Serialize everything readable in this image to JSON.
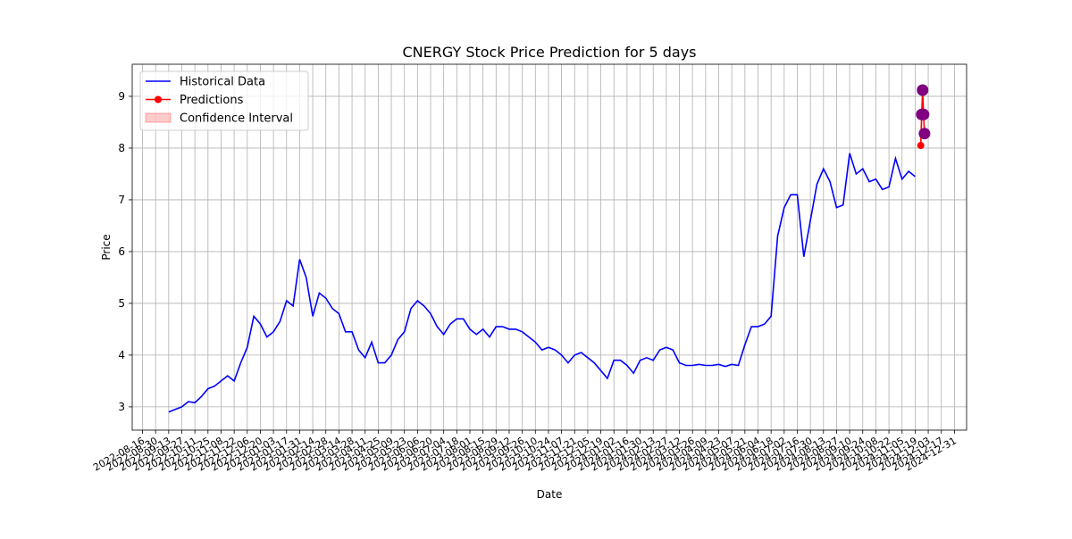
{
  "chart_data": {
    "type": "line",
    "title": "CNERGY Stock Price Prediction for 5 days",
    "x_label": "Date",
    "y_label": "Price",
    "xlim": [
      "2022-08-05",
      "2025-01-13"
    ],
    "ylim": [
      2.55,
      9.62
    ],
    "yticks": [
      3,
      4,
      5,
      6,
      7,
      8,
      9
    ],
    "xticks": [
      "2022-08-16",
      "2022-08-30",
      "2022-09-13",
      "2022-09-27",
      "2022-10-11",
      "2022-10-25",
      "2022-11-08",
      "2022-11-22",
      "2022-12-06",
      "2022-12-20",
      "2023-01-03",
      "2023-01-17",
      "2023-01-31",
      "2023-02-14",
      "2023-02-28",
      "2023-03-14",
      "2023-03-28",
      "2023-04-11",
      "2023-04-25",
      "2023-05-09",
      "2023-05-23",
      "2023-06-06",
      "2023-06-20",
      "2023-07-04",
      "2023-07-18",
      "2023-08-01",
      "2023-08-15",
      "2023-08-29",
      "2023-09-12",
      "2023-09-26",
      "2023-10-10",
      "2023-10-24",
      "2023-11-07",
      "2023-11-21",
      "2023-12-05",
      "2023-12-19",
      "2024-01-02",
      "2024-01-16",
      "2024-01-30",
      "2024-02-13",
      "2024-02-27",
      "2024-03-12",
      "2024-03-26",
      "2024-04-09",
      "2024-04-23",
      "2024-05-07",
      "2024-05-21",
      "2024-06-04",
      "2024-06-18",
      "2024-07-02",
      "2024-07-16",
      "2024-07-30",
      "2024-08-13",
      "2024-08-27",
      "2024-09-10",
      "2024-09-24",
      "2024-10-08",
      "2024-10-22",
      "2024-11-05",
      "2024-11-19",
      "2024-12-03",
      "2024-12-17",
      "2024-12-31"
    ],
    "grid": true,
    "legend": "upper left",
    "series": [
      {
        "name": "Historical Data",
        "color": "#0000ff",
        "x": [
          "2022-09-13",
          "2022-09-20",
          "2022-09-27",
          "2022-10-04",
          "2022-10-11",
          "2022-10-18",
          "2022-10-25",
          "2022-11-01",
          "2022-11-08",
          "2022-11-15",
          "2022-11-22",
          "2022-11-29",
          "2022-12-06",
          "2022-12-13",
          "2022-12-20",
          "2022-12-27",
          "2023-01-03",
          "2023-01-10",
          "2023-01-17",
          "2023-01-24",
          "2023-01-31",
          "2023-02-07",
          "2023-02-14",
          "2023-02-21",
          "2023-02-28",
          "2023-03-07",
          "2023-03-14",
          "2023-03-21",
          "2023-03-28",
          "2023-04-04",
          "2023-04-11",
          "2023-04-18",
          "2023-04-25",
          "2023-05-02",
          "2023-05-09",
          "2023-05-16",
          "2023-05-23",
          "2023-05-30",
          "2023-06-06",
          "2023-06-13",
          "2023-06-20",
          "2023-06-27",
          "2023-07-04",
          "2023-07-11",
          "2023-07-18",
          "2023-07-25",
          "2023-08-01",
          "2023-08-08",
          "2023-08-15",
          "2023-08-22",
          "2023-08-29",
          "2023-09-05",
          "2023-09-12",
          "2023-09-19",
          "2023-09-26",
          "2023-10-03",
          "2023-10-10",
          "2023-10-17",
          "2023-10-24",
          "2023-10-31",
          "2023-11-07",
          "2023-11-14",
          "2023-11-21",
          "2023-11-28",
          "2023-12-05",
          "2023-12-12",
          "2023-12-19",
          "2023-12-26",
          "2024-01-02",
          "2024-01-09",
          "2024-01-16",
          "2024-01-23",
          "2024-01-30",
          "2024-02-06",
          "2024-02-13",
          "2024-02-20",
          "2024-02-27",
          "2024-03-05",
          "2024-03-12",
          "2024-03-19",
          "2024-03-26",
          "2024-04-02",
          "2024-04-09",
          "2024-04-16",
          "2024-04-23",
          "2024-04-30",
          "2024-05-07",
          "2024-05-14",
          "2024-05-21",
          "2024-05-28",
          "2024-06-04",
          "2024-06-11",
          "2024-06-18",
          "2024-06-25",
          "2024-07-02",
          "2024-07-09",
          "2024-07-16",
          "2024-07-23",
          "2024-07-30",
          "2024-08-06",
          "2024-08-13",
          "2024-08-20",
          "2024-08-27",
          "2024-09-03",
          "2024-09-10",
          "2024-09-17",
          "2024-09-24",
          "2024-10-01",
          "2024-10-08",
          "2024-10-15",
          "2024-10-22",
          "2024-10-29",
          "2024-11-05",
          "2024-11-12",
          "2024-11-19"
        ],
        "values": [
          2.9,
          2.95,
          3.0,
          3.1,
          3.08,
          3.2,
          3.35,
          3.4,
          3.5,
          3.6,
          3.5,
          3.85,
          4.15,
          4.75,
          4.6,
          4.35,
          4.45,
          4.65,
          5.05,
          4.95,
          5.85,
          5.5,
          4.75,
          5.2,
          5.1,
          4.9,
          4.8,
          4.45,
          4.45,
          4.1,
          3.95,
          4.25,
          3.85,
          3.85,
          4.0,
          4.3,
          4.45,
          4.9,
          5.05,
          4.95,
          4.8,
          4.55,
          4.4,
          4.6,
          4.7,
          4.7,
          4.5,
          4.4,
          4.5,
          4.35,
          4.55,
          4.55,
          4.5,
          4.5,
          4.45,
          4.35,
          4.25,
          4.1,
          4.15,
          4.1,
          4.0,
          3.85,
          4.0,
          4.05,
          3.95,
          3.85,
          3.7,
          3.55,
          3.9,
          3.9,
          3.8,
          3.65,
          3.9,
          3.95,
          3.9,
          4.1,
          4.15,
          4.1,
          3.85,
          3.8,
          3.8,
          3.82,
          3.8,
          3.8,
          3.82,
          3.78,
          3.82,
          3.8,
          4.2,
          4.55,
          4.55,
          4.6,
          4.75,
          6.3,
          6.85,
          7.1,
          7.1,
          5.9,
          6.6,
          7.3,
          7.6,
          7.35,
          6.85,
          6.9,
          7.9,
          7.5,
          7.6,
          7.35,
          7.4,
          7.2,
          7.25,
          7.8,
          7.4,
          7.55,
          7.45
        ]
      },
      {
        "name": "Predictions",
        "color": "#ff0000",
        "x": [
          "2024-11-25",
          "2024-11-26",
          "2024-11-27",
          "2024-11-28",
          "2024-11-29"
        ],
        "values": [
          8.05,
          8.65,
          9.12,
          8.65,
          8.28
        ]
      },
      {
        "name": "Confidence Interval",
        "color": "#ff0000",
        "x": [
          "2024-11-25",
          "2024-11-26",
          "2024-11-27",
          "2024-11-28",
          "2024-11-29"
        ],
        "lower": [
          8.0,
          8.6,
          9.07,
          8.6,
          8.23
        ],
        "upper": [
          8.1,
          8.7,
          9.17,
          8.7,
          8.33
        ]
      }
    ],
    "highlights": {
      "color": "#800080",
      "x": [
        "2024-11-26",
        "2024-11-27",
        "2024-11-28",
        "2024-11-29"
      ],
      "values": [
        8.65,
        9.12,
        8.65,
        8.28
      ]
    }
  }
}
